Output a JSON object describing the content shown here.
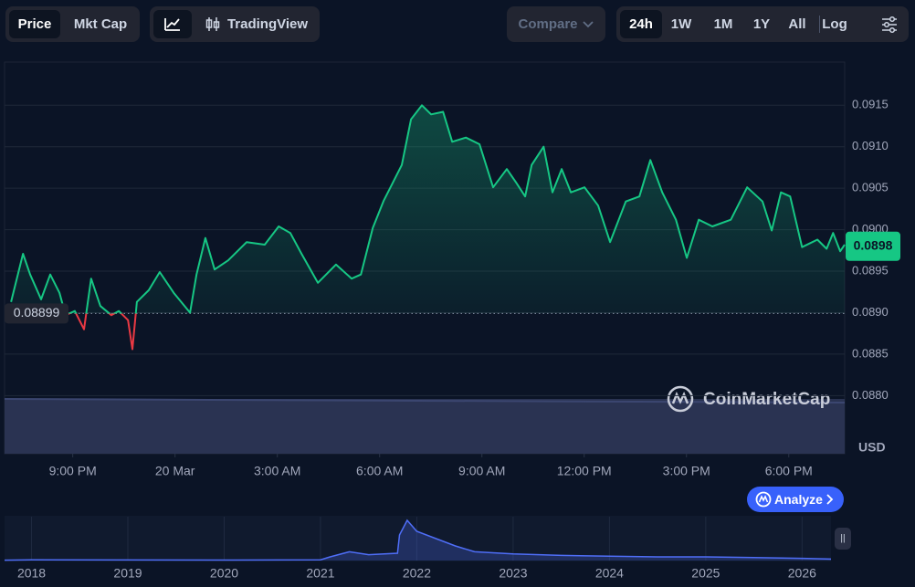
{
  "ui": {
    "price_tab": "Price",
    "mktcap_tab": "Mkt Cap",
    "tradingview": "TradingView",
    "compare": "Compare",
    "ranges": [
      "24h",
      "1W",
      "1M",
      "1Y",
      "All"
    ],
    "log": "Log",
    "watermark": "CoinMarketCap",
    "analyze": "Analyze"
  },
  "chart_data": [
    {
      "type": "line",
      "ylabel": "USD",
      "x": [
        0.19,
        0.54,
        0.75,
        1.07,
        1.34,
        1.61,
        1.79,
        2.06,
        2.33,
        2.54,
        2.81,
        3.13,
        3.35,
        3.62,
        3.75,
        3.88,
        4.23,
        4.55,
        4.96,
        5.44,
        5.63,
        5.89,
        6.16,
        6.56,
        7.1,
        7.63,
        8.04,
        8.38,
        8.71,
        9.19,
        9.72,
        10.18,
        10.45,
        10.8,
        11.12,
        11.65,
        11.92,
        12.24,
        12.51,
        12.86,
        13.13,
        13.53,
        13.93,
        14.33,
        14.73,
        15.0,
        15.27,
        15.46,
        15.81,
        16.07,
        16.34,
        16.61,
        17.01,
        17.41,
        17.76,
        18.22,
        18.62,
        18.94,
        19.29,
        19.69,
        20.01,
        20.36,
        20.76,
        21.3,
        21.78,
        22.23,
        22.5,
        22.77,
        23.04,
        23.39,
        23.84,
        24.11,
        24.3,
        24.51,
        24.64
      ],
      "values": [
        0.08913,
        0.08971,
        0.08946,
        0.08916,
        0.08946,
        0.08924,
        0.08897,
        0.08902,
        0.0888,
        0.08941,
        0.08908,
        0.08897,
        0.08902,
        0.08891,
        0.08856,
        0.08913,
        0.08927,
        0.08949,
        0.08924,
        0.089,
        0.08946,
        0.0899,
        0.08952,
        0.08963,
        0.08985,
        0.08982,
        0.09004,
        0.08996,
        0.08971,
        0.08936,
        0.08958,
        0.08941,
        0.08946,
        0.09002,
        0.09035,
        0.09078,
        0.09133,
        0.0915,
        0.09139,
        0.09142,
        0.09106,
        0.09111,
        0.09103,
        0.09051,
        0.09073,
        0.09057,
        0.0904,
        0.09078,
        0.091,
        0.09045,
        0.09073,
        0.09045,
        0.09051,
        0.09029,
        0.08985,
        0.09034,
        0.0904,
        0.09084,
        0.09045,
        0.09012,
        0.08966,
        0.09012,
        0.09004,
        0.09012,
        0.09051,
        0.09034,
        0.08999,
        0.09045,
        0.0904,
        0.08979,
        0.08988,
        0.08977,
        0.08996,
        0.08974,
        0.08982
      ],
      "up_color": "#16c784",
      "down_color": "#ea3943",
      "baseline": 0.08899,
      "current_price": 0.0898,
      "xlim": [
        0,
        24.64
      ],
      "xticks": [
        {
          "value": 2,
          "label": "9:00 PM"
        },
        {
          "value": 5,
          "label": "20 Mar"
        },
        {
          "value": 8,
          "label": "3:00 AM"
        },
        {
          "value": 11,
          "label": "6:00 AM"
        },
        {
          "value": 14,
          "label": "9:00 AM"
        },
        {
          "value": 17,
          "label": "12:00 PM"
        },
        {
          "value": 20,
          "label": "3:00 PM"
        },
        {
          "value": 23,
          "label": "6:00 PM"
        }
      ],
      "ylim": [
        0.0873,
        0.09202
      ],
      "yticks": [
        {
          "value": 0.088,
          "label": "0.0880"
        },
        0.0885,
        {
          "value": 0.089,
          "label": "0.0890"
        },
        0.0895,
        {
          "value": 0.09,
          "label": "0.0900"
        },
        0.0905,
        {
          "value": 0.091,
          "label": "0.0910"
        },
        0.0915
      ],
      "grid": true
    },
    {
      "type": "area",
      "color": "#4f6ef7",
      "x": [
        2017.72,
        2018.0,
        2019.0,
        2020.0,
        2021.0,
        2021.1,
        2021.3,
        2021.5,
        2021.8,
        2021.82,
        2021.9,
        2022.0,
        2022.2,
        2022.4,
        2022.6,
        2023.0,
        2023.5,
        2024.0,
        2024.5,
        2025.0,
        2025.5,
        2026.0,
        2026.3
      ],
      "values": [
        0.005,
        0.01,
        0.008,
        0.006,
        0.01,
        0.05,
        0.12,
        0.08,
        0.1,
        0.35,
        0.55,
        0.4,
        0.3,
        0.2,
        0.12,
        0.09,
        0.07,
        0.06,
        0.05,
        0.05,
        0.04,
        0.03,
        0.02
      ],
      "xlim": [
        2017.72,
        2026.3
      ],
      "xticks": [
        2018,
        2019,
        2020,
        2021,
        2022,
        2023,
        2024,
        2025,
        2026
      ],
      "ylim": [
        0,
        0.6
      ]
    }
  ]
}
